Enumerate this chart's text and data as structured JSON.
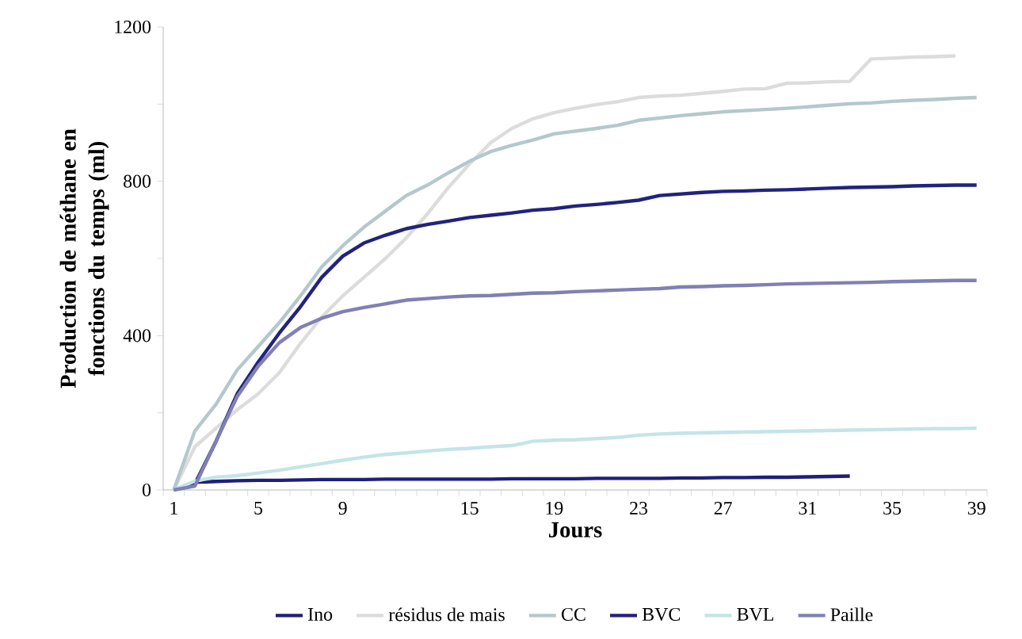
{
  "chart_data": {
    "type": "line",
    "xlabel": "Jours",
    "ylabel": "Production de méthane en fonctions du temps (ml)",
    "x": [
      1,
      2,
      3,
      4,
      5,
      6,
      7,
      8,
      9,
      10,
      11,
      12,
      13,
      14,
      15,
      16,
      17,
      18,
      19,
      20,
      21,
      22,
      23,
      24,
      25,
      26,
      27,
      28,
      29,
      30,
      31,
      32,
      33,
      34,
      35,
      36,
      37,
      38,
      39
    ],
    "xlim": [
      0.5,
      39.5
    ],
    "xticks": [
      1,
      5,
      9,
      15,
      19,
      23,
      27,
      31,
      35,
      39,
      {
        "value": 0.5,
        "label": null
      },
      {
        "value": 1.5,
        "label": null
      },
      {
        "value": 2.5,
        "label": null
      },
      {
        "value": 3.5,
        "label": null
      },
      {
        "value": 4.5,
        "label": null
      },
      {
        "value": 5.5,
        "label": null
      },
      {
        "value": 6.5,
        "label": null
      },
      {
        "value": 7.5,
        "label": null
      },
      {
        "value": 8.5,
        "label": null
      },
      {
        "value": 9.5,
        "label": null
      },
      {
        "value": 10.5,
        "label": null
      },
      {
        "value": 11.5,
        "label": null
      },
      {
        "value": 12.5,
        "label": null
      },
      {
        "value": 13.5,
        "label": null
      },
      {
        "value": 14.5,
        "label": null
      },
      {
        "value": 15.5,
        "label": null
      },
      {
        "value": 16.5,
        "label": null
      },
      {
        "value": 17.5,
        "label": null
      },
      {
        "value": 18.5,
        "label": null
      },
      {
        "value": 19.5,
        "label": null
      },
      {
        "value": 20.5,
        "label": null
      },
      {
        "value": 21.5,
        "label": null
      },
      {
        "value": 22.5,
        "label": null
      },
      {
        "value": 23.5,
        "label": null
      },
      {
        "value": 24.5,
        "label": null
      },
      {
        "value": 25.5,
        "label": null
      },
      {
        "value": 26.5,
        "label": null
      },
      {
        "value": 27.5,
        "label": null
      },
      {
        "value": 28.5,
        "label": null
      },
      {
        "value": 29.5,
        "label": null
      },
      {
        "value": 30.5,
        "label": null
      },
      {
        "value": 31.5,
        "label": null
      },
      {
        "value": 32.5,
        "label": null
      },
      {
        "value": 33.5,
        "label": null
      },
      {
        "value": 34.5,
        "label": null
      },
      {
        "value": 35.5,
        "label": null
      },
      {
        "value": 36.5,
        "label": null
      },
      {
        "value": 37.5,
        "label": null
      },
      {
        "value": 38.5,
        "label": null
      },
      {
        "value": 39.5,
        "label": null
      }
    ],
    "ylim": [
      0,
      1200
    ],
    "yticks": [
      0,
      400,
      800,
      1200,
      {
        "value": 200,
        "label": null
      },
      {
        "value": 600,
        "label": null
      },
      {
        "value": 1000,
        "label": null
      }
    ],
    "legend": "bottom",
    "marker": "none",
    "line_style": "solid",
    "series": [
      {
        "name": "Ino",
        "color": "#1f1f7a",
        "values": [
          0,
          20,
          22,
          24,
          25,
          25,
          26,
          27,
          27,
          27,
          28,
          28,
          28,
          28,
          28,
          28,
          29,
          29,
          29,
          29,
          30,
          30,
          30,
          30,
          31,
          31,
          32,
          32,
          33,
          33,
          34,
          35,
          36,
          null,
          null,
          null,
          null,
          null,
          null
        ]
      },
      {
        "name": "résidus de mais",
        "color": "#dcdcdc",
        "values": [
          0,
          112,
          160,
          208,
          249,
          304,
          380,
          448,
          503,
          551,
          599,
          653,
          715,
          784,
          845,
          900,
          937,
          962,
          978,
          989,
          999,
          1006,
          1017,
          1021,
          1023,
          1028,
          1033,
          1039,
          1040,
          1054,
          1055,
          1058,
          1059,
          1117,
          1119,
          1122,
          1123,
          1125,
          null
        ]
      },
      {
        "name": "CC",
        "color": "#b4c8cc",
        "values": [
          0,
          153,
          222,
          311,
          372,
          434,
          503,
          578,
          633,
          681,
          722,
          763,
          790,
          822,
          852,
          877,
          893,
          907,
          923,
          930,
          937,
          945,
          958,
          964,
          970,
          975,
          980,
          983,
          986,
          989,
          993,
          997,
          1001,
          1003,
          1007,
          1010,
          1012,
          1015,
          1017
        ]
      },
      {
        "name": "BVC",
        "color": "#22227e",
        "values": [
          0,
          16,
          126,
          249,
          332,
          407,
          475,
          551,
          606,
          640,
          660,
          677,
          688,
          697,
          706,
          712,
          718,
          725,
          729,
          736,
          740,
          745,
          751,
          763,
          767,
          771,
          774,
          775,
          777,
          778,
          780,
          782,
          784,
          785,
          786,
          788,
          789,
          790,
          790
        ]
      },
      {
        "name": "BVL",
        "color": "#c4e4e8",
        "values": [
          0,
          23,
          33,
          37,
          44,
          51,
          60,
          68,
          77,
          85,
          92,
          96,
          101,
          105,
          108,
          112,
          115,
          126,
          129,
          130,
          133,
          136,
          142,
          145,
          147,
          148,
          149,
          150,
          151,
          152,
          153,
          154,
          155,
          156,
          157,
          158,
          159,
          159,
          160
        ]
      },
      {
        "name": "Paille",
        "color": "#8080b4",
        "values": [
          0,
          10,
          126,
          242,
          321,
          382,
          421,
          445,
          462,
          473,
          482,
          492,
          496,
          500,
          503,
          504,
          507,
          510,
          511,
          514,
          516,
          518,
          520,
          522,
          526,
          527,
          529,
          530,
          532,
          534,
          535,
          536,
          537,
          538,
          540,
          541,
          542,
          543,
          543
        ]
      }
    ]
  }
}
